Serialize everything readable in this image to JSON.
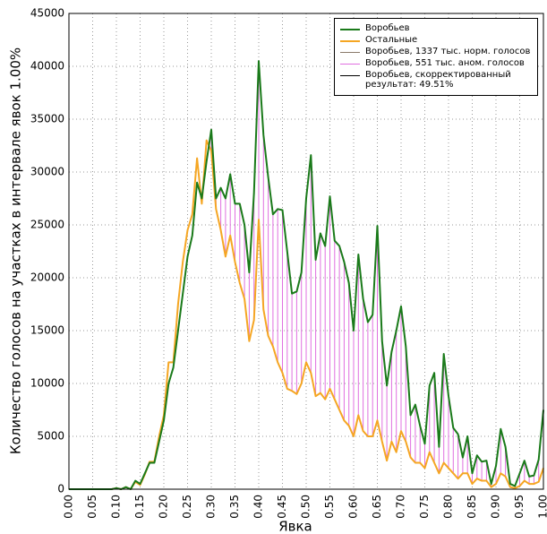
{
  "chart_data": {
    "type": "line",
    "xlabel": "Явка",
    "ylabel": "Количество голосов на участках в интервале явок 1.00%",
    "x": [
      0.0,
      0.01,
      0.02,
      0.03,
      0.04,
      0.05,
      0.06,
      0.07,
      0.08,
      0.09,
      0.1,
      0.11,
      0.12,
      0.13,
      0.14,
      0.15,
      0.16,
      0.17,
      0.18,
      0.19,
      0.2,
      0.21,
      0.22,
      0.23,
      0.24,
      0.25,
      0.26,
      0.27,
      0.28,
      0.29,
      0.3,
      0.31,
      0.32,
      0.33,
      0.34,
      0.35,
      0.36,
      0.37,
      0.38,
      0.39,
      0.4,
      0.41,
      0.42,
      0.43,
      0.44,
      0.45,
      0.46,
      0.47,
      0.48,
      0.49,
      0.5,
      0.51,
      0.52,
      0.53,
      0.54,
      0.55,
      0.56,
      0.57,
      0.58,
      0.59,
      0.6,
      0.61,
      0.62,
      0.63,
      0.64,
      0.65,
      0.66,
      0.67,
      0.68,
      0.69,
      0.7,
      0.71,
      0.72,
      0.73,
      0.74,
      0.75,
      0.76,
      0.77,
      0.78,
      0.79,
      0.8,
      0.81,
      0.82,
      0.83,
      0.84,
      0.85,
      0.86,
      0.87,
      0.88,
      0.89,
      0.9,
      0.91,
      0.92,
      0.93,
      0.94,
      0.95,
      0.96,
      0.97,
      0.98,
      0.99,
      1.0
    ],
    "series": [
      {
        "name": "Воробьев",
        "color": "#1a7a1a",
        "width": 2,
        "values": [
          0,
          0,
          0,
          0,
          0,
          0,
          0,
          0,
          0,
          0,
          100,
          0,
          200,
          0,
          800,
          500,
          1500,
          2500,
          2500,
          4500,
          6500,
          10000,
          11500,
          15000,
          18500,
          22000,
          24000,
          29000,
          27500,
          31000,
          34000,
          27500,
          28500,
          27500,
          29800,
          27000,
          27000,
          25000,
          20500,
          28000,
          40500,
          33500,
          29500,
          26000,
          26500,
          26400,
          22500,
          18500,
          18700,
          20500,
          27500,
          31600,
          21700,
          24200,
          23000,
          27700,
          23500,
          23000,
          21500,
          19500,
          15000,
          22200,
          18000,
          15800,
          16500,
          24900,
          14000,
          9800,
          13000,
          15000,
          17300,
          13500,
          7000,
          8000,
          6000,
          4300,
          9800,
          11000,
          4000,
          12800,
          8800,
          5800,
          5200,
          3000,
          5000,
          1500,
          3200,
          2600,
          2700,
          500,
          2200,
          5700,
          4000,
          500,
          300,
          1500,
          2700,
          1200,
          1300,
          2800,
          7500
        ]
      },
      {
        "name": "Остальные",
        "color": "#f5a623",
        "width": 2,
        "values": [
          0,
          0,
          0,
          0,
          0,
          0,
          0,
          0,
          0,
          0,
          100,
          0,
          200,
          0,
          700,
          400,
          1400,
          2600,
          2600,
          5000,
          7000,
          12000,
          12000,
          17500,
          21500,
          24500,
          26000,
          31300,
          27000,
          33000,
          32000,
          26500,
          24500,
          22000,
          24000,
          21500,
          19500,
          18000,
          14000,
          16000,
          25500,
          17000,
          14500,
          13500,
          12000,
          11000,
          9500,
          9300,
          9000,
          10000,
          12000,
          11000,
          8800,
          9100,
          8500,
          9500,
          8500,
          7500,
          6500,
          6000,
          5000,
          7000,
          5500,
          5000,
          5000,
          6500,
          4500,
          2700,
          4500,
          3500,
          5500,
          4500,
          3000,
          2500,
          2500,
          2000,
          3500,
          2500,
          1500,
          2500,
          2000,
          1500,
          1000,
          1500,
          1500,
          500,
          1000,
          800,
          800,
          200,
          500,
          1500,
          1200,
          200,
          100,
          300,
          800,
          500,
          500,
          700,
          2000
        ]
      },
      {
        "name": "Воробьев, 1337 тыс. норм. голосов",
        "color": "#8a7a6a",
        "width": 1,
        "values": [
          0,
          0,
          0,
          0,
          0,
          0,
          0,
          0,
          0,
          0,
          100,
          0,
          200,
          0,
          700,
          400,
          1400,
          2600,
          2600,
          5000,
          7000,
          12000,
          12000,
          17500,
          21500,
          24500,
          26000,
          31300,
          27000,
          33000,
          32000,
          26500,
          24500,
          22000,
          24000,
          21500,
          19500,
          18000,
          14000,
          16000,
          25500,
          17000,
          14500,
          13500,
          12000,
          11000,
          9500,
          9300,
          9000,
          10000,
          12000,
          11000,
          8800,
          9100,
          8500,
          9500,
          8500,
          7500,
          6500,
          6000,
          5000,
          7000,
          5500,
          5000,
          5000,
          6500,
          4500,
          2700,
          4500,
          3500,
          5500,
          4500,
          3000,
          2500,
          2500,
          2000,
          3500,
          2500,
          1500,
          2500,
          2000,
          1500,
          1000,
          1500,
          1500,
          500,
          1000,
          800,
          800,
          200,
          500,
          1500,
          1200,
          200,
          100,
          300,
          800,
          500,
          500,
          700,
          2000
        ]
      },
      {
        "name": "Воробьев, 551 тыс. аном. голосов",
        "color": "#e070e0",
        "width": 1,
        "stacked": true,
        "values": [
          0,
          0,
          0,
          0,
          0,
          0,
          0,
          0,
          0,
          0,
          0,
          0,
          0,
          0,
          0,
          0,
          0,
          0,
          0,
          0,
          0,
          0,
          0,
          0,
          0,
          0,
          0,
          0,
          0,
          0,
          2000,
          1000,
          4000,
          5500,
          5800,
          5500,
          7500,
          7000,
          6500,
          12000,
          15000,
          16500,
          15000,
          12500,
          14500,
          15400,
          13000,
          9200,
          9700,
          10500,
          15500,
          20600,
          12900,
          15100,
          14500,
          18200,
          15000,
          15500,
          15000,
          13500,
          10000,
          15200,
          12500,
          10800,
          11500,
          18400,
          9500,
          7100,
          8500,
          11500,
          11800,
          9000,
          4000,
          5500,
          3500,
          2300,
          6300,
          8500,
          2500,
          10300,
          6800,
          4300,
          4200,
          1500,
          3500,
          1000,
          2200,
          1800,
          1900,
          300,
          1700,
          4200,
          2800,
          300,
          200,
          1200,
          1900,
          700,
          800,
          2100,
          5500
        ]
      }
    ],
    "legend_extra": {
      "name": "Воробьев, скорректированный результат: 49.51%",
      "color": "#000000"
    },
    "legend": "upper right",
    "grid": true,
    "xlim": [
      0,
      1
    ],
    "ylim": [
      0,
      45000
    ],
    "xticks": [
      {
        "value": 0,
        "label": "0.00"
      },
      {
        "value": 0.05,
        "label": "0.05"
      },
      {
        "value": 0.1,
        "label": "0.10"
      },
      {
        "value": 0.15,
        "label": "0.15"
      },
      {
        "value": 0.2,
        "label": "0.20"
      },
      {
        "value": 0.25,
        "label": "0.25"
      },
      {
        "value": 0.3,
        "label": "0.30"
      },
      {
        "value": 0.35,
        "label": "0.35"
      },
      {
        "value": 0.4,
        "label": "0.40"
      },
      {
        "value": 0.45,
        "label": "0.45"
      },
      {
        "value": 0.5,
        "label": "0.50"
      },
      {
        "value": 0.55,
        "label": "0.55"
      },
      {
        "value": 0.6,
        "label": "0.60"
      },
      {
        "value": 0.65,
        "label": "0.65"
      },
      {
        "value": 0.7,
        "label": "0.70"
      },
      {
        "value": 0.75,
        "label": "0.75"
      },
      {
        "value": 0.8,
        "label": "0.80"
      },
      {
        "value": 0.85,
        "label": "0.85"
      },
      {
        "value": 0.9,
        "label": "0.90"
      },
      {
        "value": 0.95,
        "label": "0.95"
      },
      {
        "value": 1,
        "label": "1.00"
      }
    ],
    "yticks": [
      0,
      5000,
      10000,
      15000,
      20000,
      25000,
      30000,
      35000,
      40000,
      45000
    ]
  }
}
